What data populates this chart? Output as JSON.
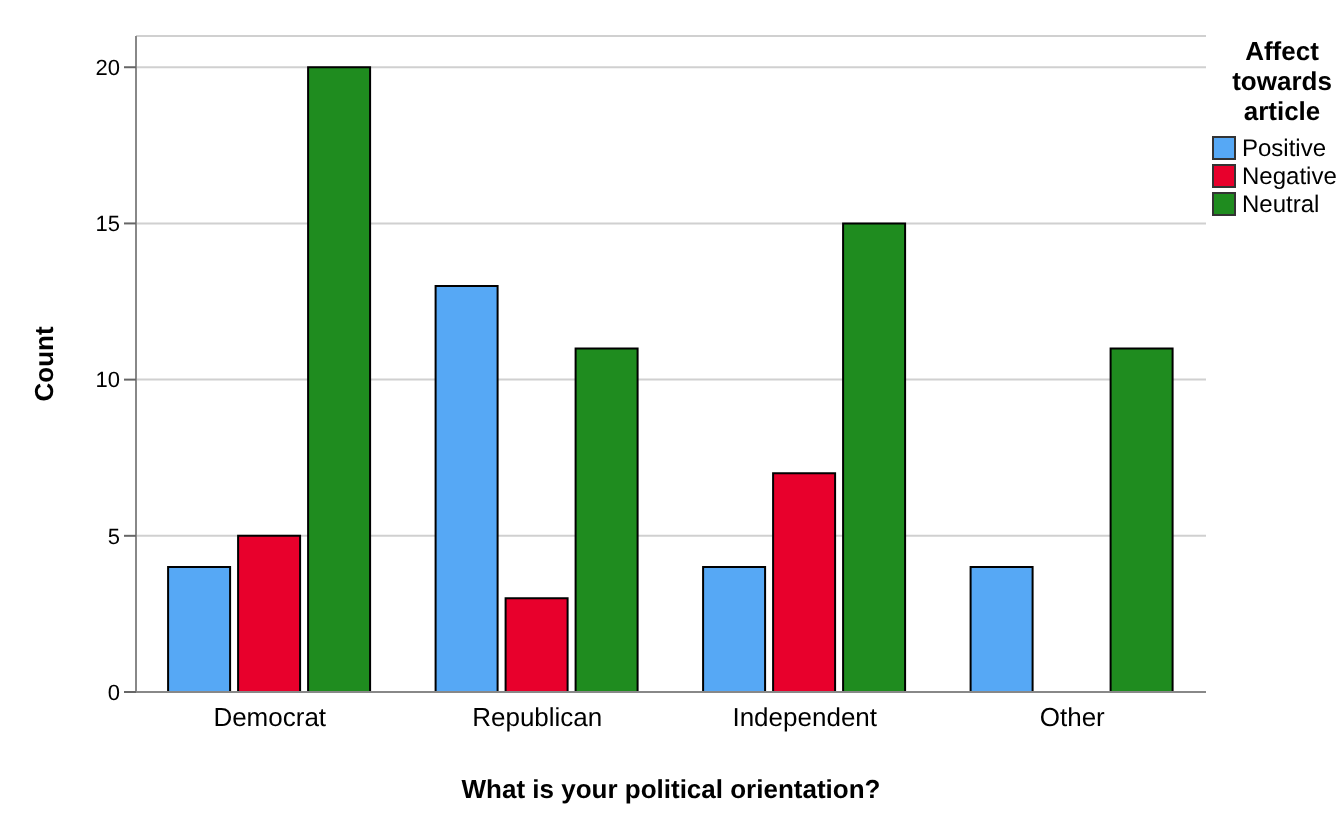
{
  "chart_data": {
    "type": "bar",
    "xlabel": "What is your political orientation?",
    "ylabel": "Count",
    "legend_title": "Affect towards article",
    "categories": [
      "Democrat",
      "Republican",
      "Independent",
      "Other"
    ],
    "series": [
      {
        "name": "Positive",
        "color": "#56a8f5",
        "values": [
          4,
          13,
          4,
          4
        ]
      },
      {
        "name": "Negative",
        "color": "#e8002c",
        "values": [
          5,
          3,
          7,
          0
        ]
      },
      {
        "name": "Neutral",
        "color": "#1f8c1f",
        "values": [
          20,
          11,
          15,
          11
        ]
      }
    ],
    "ylim": [
      0,
      21
    ],
    "yticks": [
      0,
      5,
      10,
      15,
      20
    ],
    "grid": "y",
    "legend": "right"
  }
}
